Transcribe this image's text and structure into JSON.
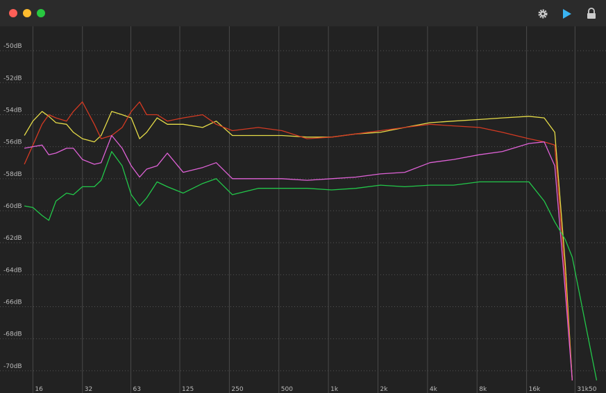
{
  "chart_data": {
    "type": "line",
    "xscale": "log",
    "x": [
      14.2,
      16,
      18.2,
      20.0,
      22.1,
      25.6,
      28.2,
      32,
      37.8,
      41.6,
      48.2,
      55.8,
      63.4,
      71.2,
      78.6,
      91,
      105,
      131,
      172,
      208,
      261,
      375,
      522,
      742,
      1045,
      1469,
      2070,
      2910,
      4138,
      5760,
      8270,
      11400,
      16530,
      20470,
      23740,
      27480,
      30300,
      42640
    ],
    "series": [
      {
        "name": "yellow",
        "color": "#e6dc48",
        "values": [
          -55.3,
          -54.4,
          -53.8,
          -54.1,
          -54.5,
          -54.6,
          -55.1,
          -55.5,
          -55.7,
          -55.3,
          -53.8,
          -54.0,
          -54.2,
          -55.5,
          -55.1,
          -54.2,
          -54.6,
          -54.6,
          -54.8,
          -54.4,
          -55.3,
          -55.3,
          -55.3,
          -55.4,
          -55.4,
          -55.2,
          -55.1,
          -54.8,
          -54.5,
          -54.4,
          -54.3,
          -54.2,
          -54.1,
          -54.2,
          -55.1,
          -63.3,
          -70.6,
          null
        ]
      },
      {
        "name": "red",
        "color": "#d43a22",
        "values": [
          -57.1,
          -55.9,
          -54.6,
          -54.0,
          -54.2,
          -54.4,
          -53.8,
          -53.2,
          -54.6,
          -55.5,
          -55.3,
          -54.8,
          -53.8,
          -53.2,
          -54.0,
          -54.0,
          -54.4,
          -54.2,
          -54.0,
          -54.6,
          -55.0,
          -54.8,
          -55.0,
          -55.5,
          -55.4,
          -55.2,
          -55.0,
          -54.8,
          -54.6,
          -54.7,
          -54.8,
          -55.1,
          -55.5,
          -55.7,
          -55.9,
          -64.2,
          -70.6,
          null
        ]
      },
      {
        "name": "pink",
        "color": "#e062d8",
        "values": [
          -56.1,
          -56.0,
          -55.9,
          -56.5,
          -56.4,
          -56.1,
          -56.1,
          -56.8,
          -57.1,
          -57.0,
          -55.3,
          -56.1,
          -57.2,
          -57.9,
          -57.4,
          -57.2,
          -56.4,
          -57.6,
          -57.3,
          -57.0,
          -58.0,
          -58.0,
          -58.0,
          -58.1,
          -58.0,
          -57.9,
          -57.7,
          -57.6,
          -57.0,
          -56.8,
          -56.5,
          -56.3,
          -55.8,
          -55.7,
          -57.2,
          -65.0,
          -70.6,
          null
        ]
      },
      {
        "name": "green",
        "color": "#22c84a",
        "values": [
          -59.7,
          -59.8,
          -60.3,
          -60.6,
          -59.4,
          -58.9,
          -59.0,
          -58.5,
          -58.5,
          -58.1,
          -56.3,
          -57.2,
          -59.0,
          -59.7,
          -59.2,
          -58.2,
          -58.5,
          -58.9,
          -58.3,
          -58.0,
          -59.0,
          -58.6,
          -58.6,
          -58.6,
          -58.7,
          -58.6,
          -58.4,
          -58.5,
          -58.4,
          -58.4,
          -58.2,
          -58.2,
          -58.2,
          -59.4,
          -60.7,
          -61.8,
          -62.9,
          -70.6
        ]
      }
    ],
    "xlim": [
      10.1,
      48600
    ],
    "xticks": [
      16,
      32,
      63,
      125,
      250,
      500,
      {
        "value": 1000,
        "label": "1k"
      },
      {
        "value": 2000,
        "label": "2k"
      },
      {
        "value": 4000,
        "label": "4k"
      },
      {
        "value": 8000,
        "label": "8k"
      },
      {
        "value": 16000,
        "label": "16k"
      },
      {
        "value": 31500,
        "label": "31k50"
      }
    ],
    "ylim": [
      -71.39,
      -48.48
    ],
    "yticks": [
      {
        "value": -50,
        "label": "-50dB"
      },
      {
        "value": -52,
        "label": "-52dB"
      },
      {
        "value": -54,
        "label": "-54dB"
      },
      {
        "value": -56,
        "label": "-56dB"
      },
      {
        "value": -58,
        "label": "-58dB"
      },
      {
        "value": -60,
        "label": "-60dB"
      },
      {
        "value": -62,
        "label": "-62dB"
      },
      {
        "value": -64,
        "label": "-64dB"
      },
      {
        "value": -66,
        "label": "-66dB"
      },
      {
        "value": -68,
        "label": "-68dB"
      },
      {
        "value": -70,
        "label": "-70dB"
      }
    ],
    "grid": true
  }
}
